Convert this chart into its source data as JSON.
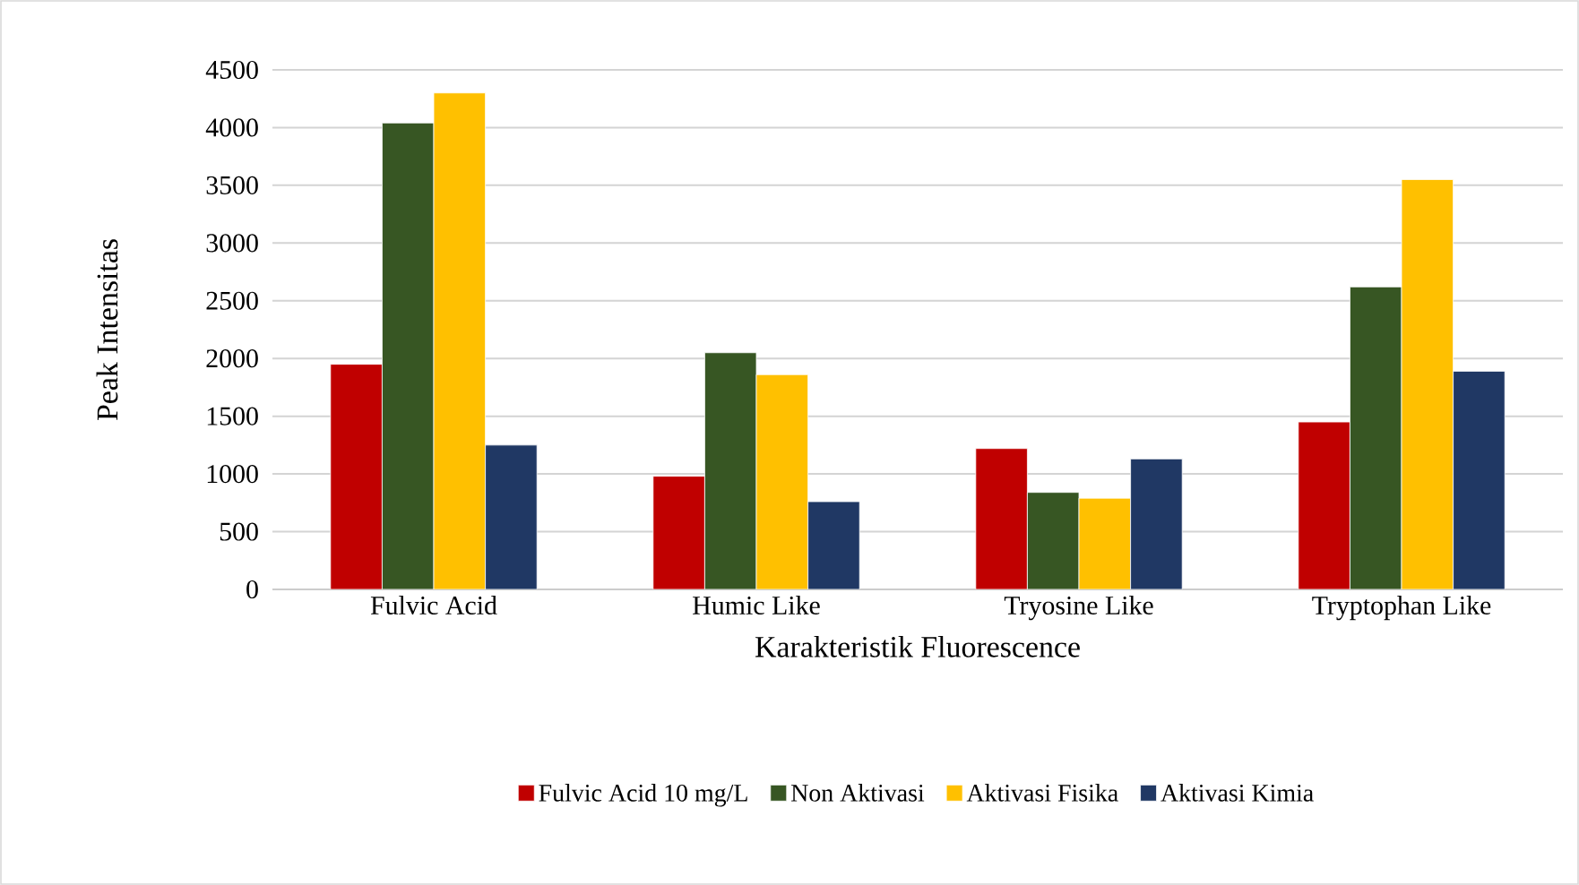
{
  "chart_data": {
    "type": "bar",
    "xlabel": "Karakteristik Fluorescence",
    "ylabel": "Peak Intensitas",
    "categories": [
      "Fulvic Acid",
      "Humic Like",
      "Tryosine Like",
      "Tryptophan Like"
    ],
    "series": [
      {
        "name": "Fulvic Acid 10 mg/L",
        "color": "#c00000",
        "values": [
          1950,
          980,
          1220,
          1450
        ]
      },
      {
        "name": "Non Aktivasi",
        "color": "#375623",
        "values": [
          4040,
          2050,
          840,
          2620
        ]
      },
      {
        "name": "Aktivasi Fisika",
        "color": "#ffc000",
        "values": [
          4300,
          1860,
          790,
          3550
        ]
      },
      {
        "name": "Aktivasi Kimia",
        "color": "#203864",
        "values": [
          1250,
          760,
          1130,
          1890
        ]
      }
    ],
    "ylim": [
      0,
      4500
    ],
    "yticks": [
      0,
      500,
      1000,
      1500,
      2000,
      2500,
      3000,
      3500,
      4000,
      4500
    ],
    "grid": "y",
    "legend": "bottom"
  }
}
